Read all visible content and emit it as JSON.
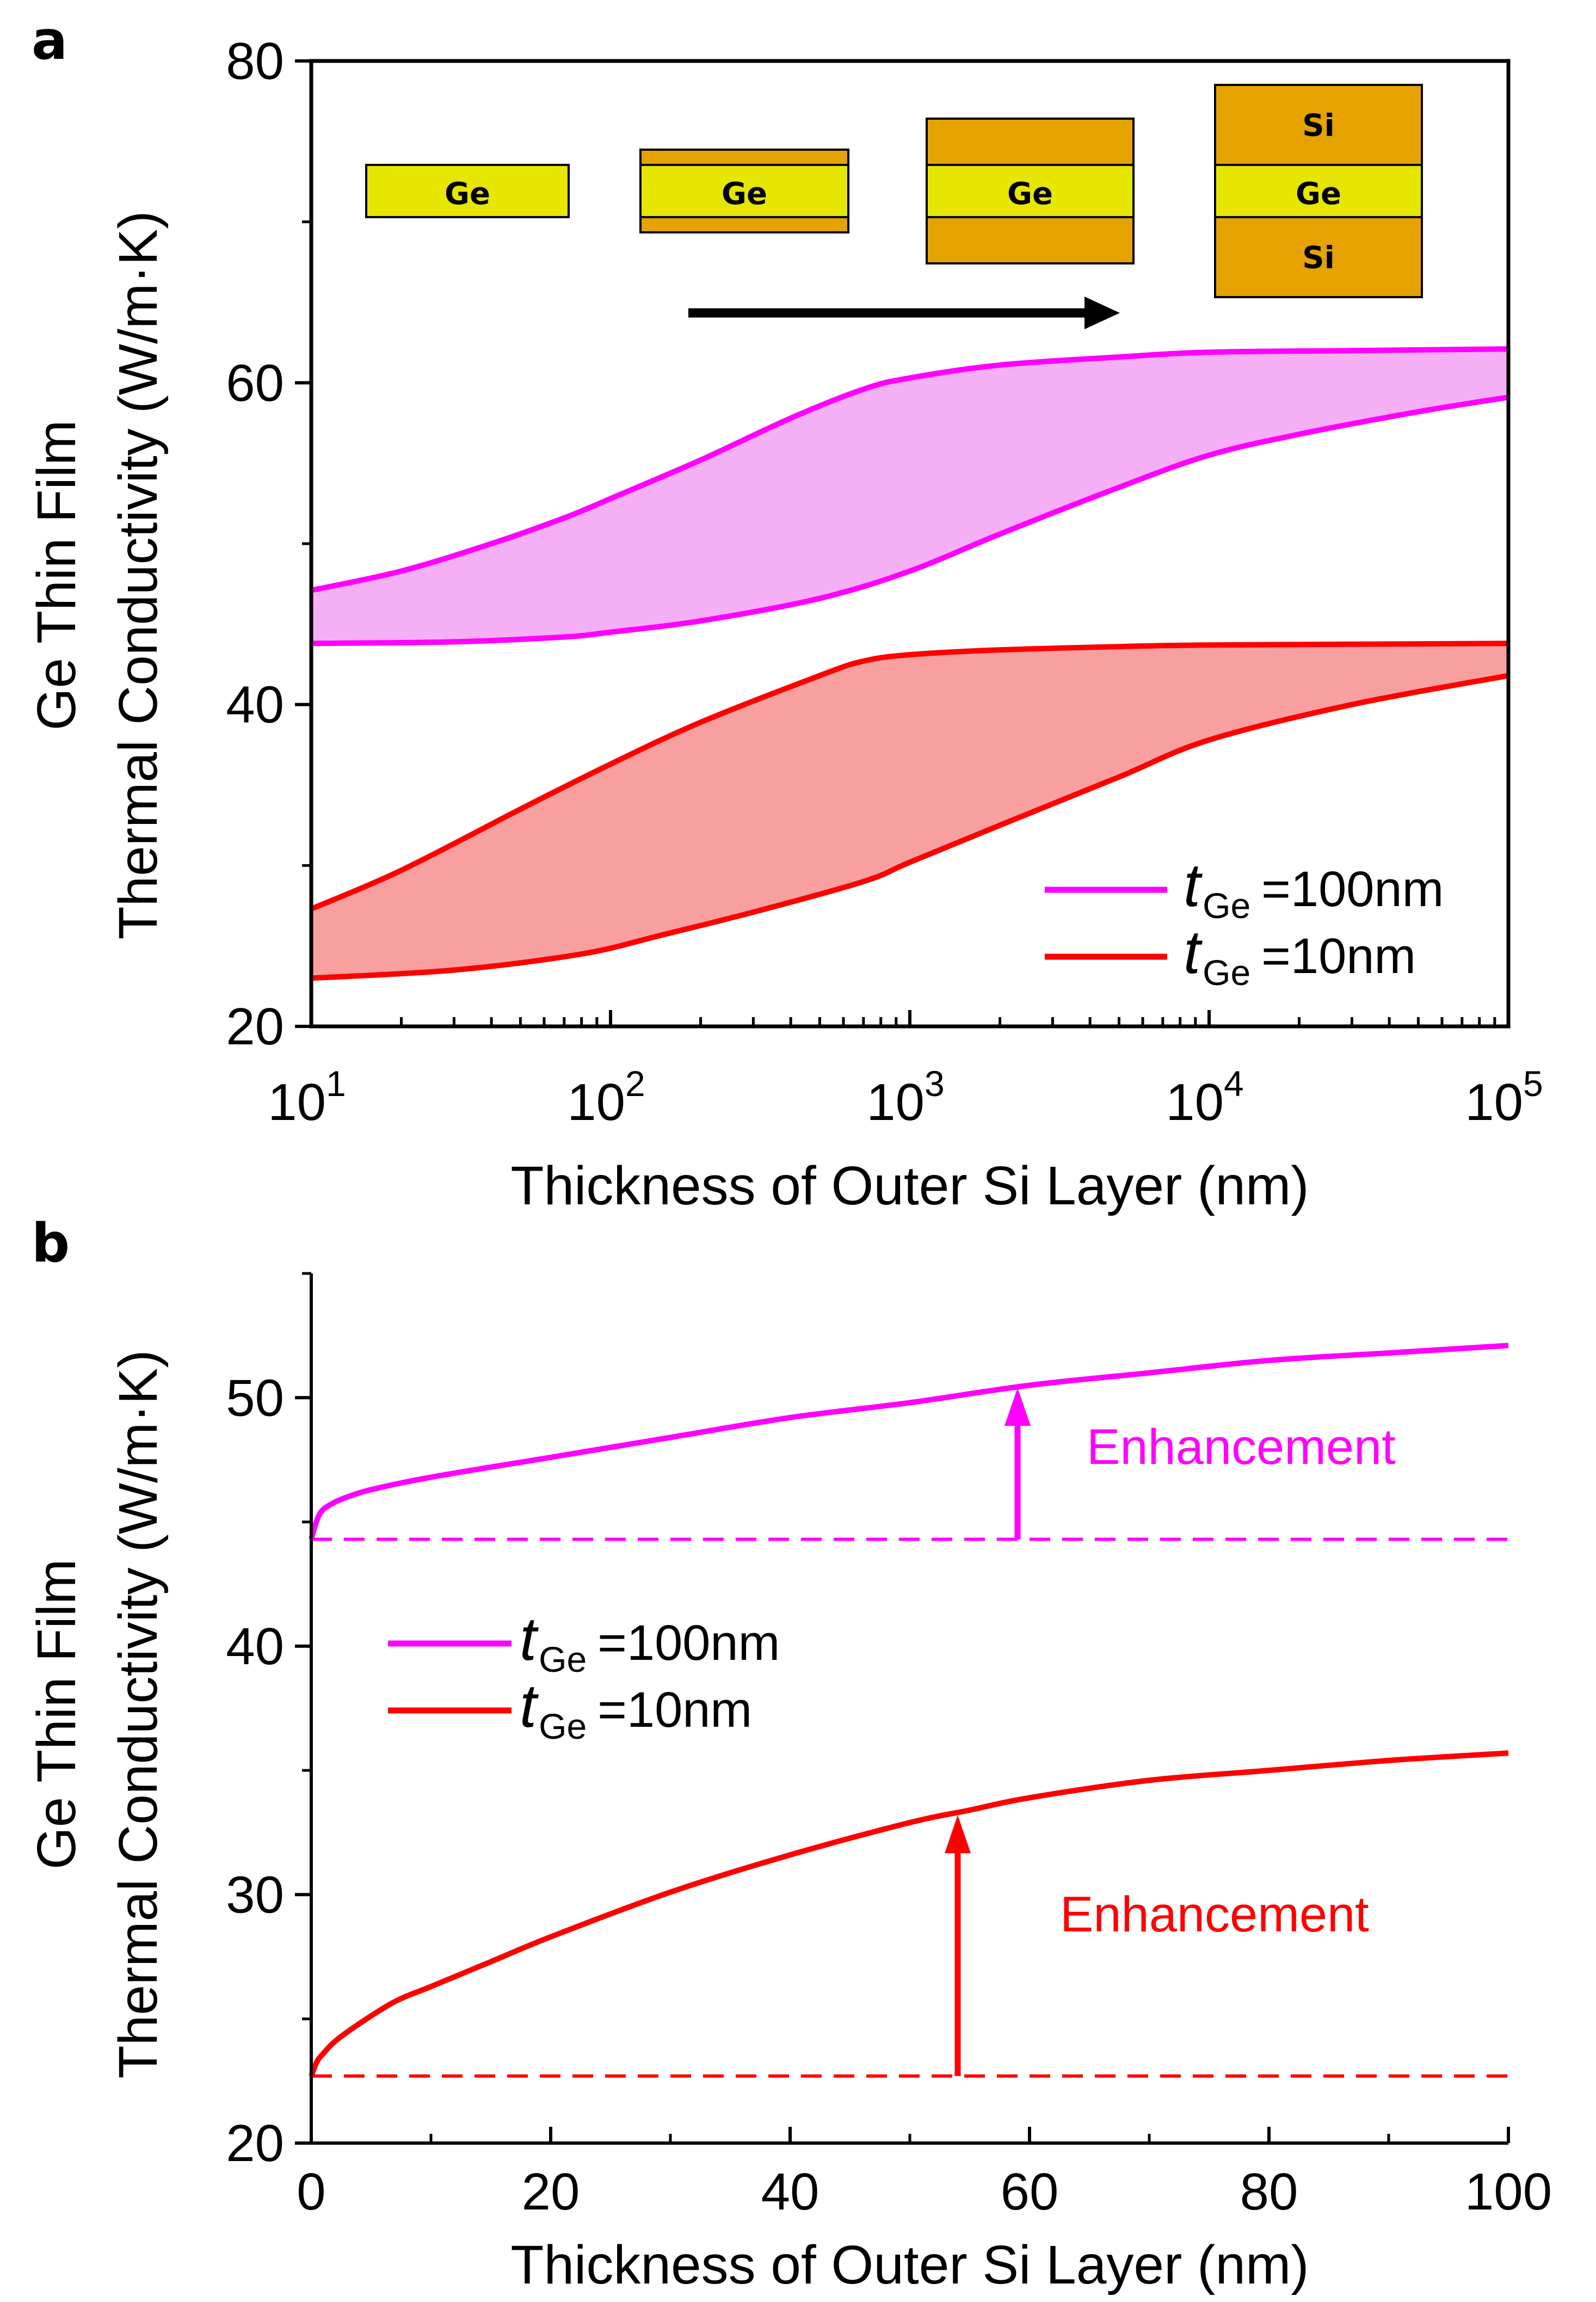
{
  "chart_data": [
    {
      "panel": "a",
      "type": "area",
      "xlabel": "Thickness of Outer Si Layer (nm)",
      "ylabel": [
        "Ge Thin Film",
        "Thermal Conductivity (W/m·K)"
      ],
      "xscale": "log",
      "xlim": [
        10,
        100000
      ],
      "ylim": [
        20,
        80
      ],
      "x_ticks": [
        {
          "base": "10",
          "exp": "1"
        },
        {
          "base": "10",
          "exp": "2"
        },
        {
          "base": "10",
          "exp": "3"
        },
        {
          "base": "10",
          "exp": "4"
        },
        {
          "base": "10",
          "exp": "5"
        }
      ],
      "y_ticks": [
        20,
        40,
        60,
        80
      ],
      "legend": {
        "placement": "lower-right",
        "entries": [
          {
            "symbol": "t",
            "sub": "Ge",
            "rest": "=100nm",
            "color": "#ff00ff"
          },
          {
            "symbol": "t",
            "sub": "Ge",
            "rest": "=10nm",
            "color": "#ff0000"
          }
        ]
      },
      "inset": {
        "stacks": [
          {
            "labels": [
              "",
              "Ge",
              ""
            ]
          },
          {
            "labels": [
              "",
              "Ge",
              ""
            ]
          },
          {
            "labels": [
              "",
              "Ge",
              ""
            ]
          },
          {
            "labels": [
              "Si",
              "Ge",
              "Si"
            ]
          }
        ],
        "colors": {
          "ge": "#e6e600",
          "si": "#e6a200",
          "arrow": "#000000"
        }
      },
      "series": [
        {
          "name": "tGe=100nm",
          "color": "#ff00ff",
          "fill": "#f5aff5",
          "upper": [
            [
              10,
              47.1
            ],
            [
              20,
              48.3
            ],
            [
              40,
              50.0
            ],
            [
              70,
              51.6
            ],
            [
              100,
              52.8
            ],
            [
              200,
              55.2
            ],
            [
              400,
              57.8
            ],
            [
              700,
              59.6
            ],
            [
              1000,
              60.3
            ],
            [
              2000,
              61.1
            ],
            [
              5000,
              61.6
            ],
            [
              10000,
              61.9
            ],
            [
              30000,
              62.0
            ],
            [
              100000,
              62.1
            ]
          ],
          "lower": [
            [
              10,
              43.8
            ],
            [
              30,
              43.9
            ],
            [
              70,
              44.2
            ],
            [
              100,
              44.5
            ],
            [
              200,
              45.2
            ],
            [
              500,
              46.6
            ],
            [
              1000,
              48.3
            ],
            [
              2000,
              50.6
            ],
            [
              5000,
              53.5
            ],
            [
              10000,
              55.5
            ],
            [
              20000,
              56.8
            ],
            [
              50000,
              58.2
            ],
            [
              100000,
              59.1
            ]
          ]
        },
        {
          "name": "tGe=10nm",
          "color": "#ff0000",
          "fill": "#f8a0a0",
          "upper": [
            [
              10,
              27.3
            ],
            [
              20,
              29.7
            ],
            [
              50,
              33.5
            ],
            [
              100,
              36.3
            ],
            [
              200,
              38.9
            ],
            [
              500,
              41.8
            ],
            [
              700,
              42.7
            ],
            [
              1000,
              43.1
            ],
            [
              2000,
              43.4
            ],
            [
              5000,
              43.6
            ],
            [
              10000,
              43.7
            ],
            [
              100000,
              43.8
            ]
          ],
          "lower": [
            [
              10,
              23.0
            ],
            [
              30,
              23.5
            ],
            [
              80,
              24.5
            ],
            [
              150,
              25.7
            ],
            [
              300,
              27.1
            ],
            [
              700,
              29.0
            ],
            [
              1000,
              30.2
            ],
            [
              2000,
              32.5
            ],
            [
              5000,
              35.5
            ],
            [
              10000,
              37.8
            ],
            [
              30000,
              40.0
            ],
            [
              100000,
              41.8
            ]
          ]
        }
      ]
    },
    {
      "panel": "b",
      "type": "line",
      "xlabel": "Thickness of Outer Si Layer (nm)",
      "ylabel": [
        "Ge Thin Film",
        "Thermal Conductivity (W/m·K)"
      ],
      "xlim": [
        0,
        100
      ],
      "ylim": [
        20,
        55
      ],
      "x_ticks": [
        0,
        20,
        40,
        60,
        80,
        100
      ],
      "y_ticks": [
        20,
        30,
        40,
        50
      ],
      "legend": {
        "placement": "upper-left",
        "entries": [
          {
            "symbol": "t",
            "sub": "Ge",
            "rest": "=100nm",
            "color": "#ff00ff"
          },
          {
            "symbol": "t",
            "sub": "Ge",
            "rest": "=10nm",
            "color": "#ff0000"
          }
        ]
      },
      "series": [
        {
          "name": "tGe=100nm",
          "color": "#ff00ff",
          "points": [
            [
              0,
              44.3
            ],
            [
              0.5,
              45.1
            ],
            [
              1,
              45.5
            ],
            [
              2,
              45.8
            ],
            [
              3,
              46.0
            ],
            [
              5,
              46.3
            ],
            [
              10,
              46.8
            ],
            [
              20,
              47.6
            ],
            [
              30,
              48.4
            ],
            [
              40,
              49.2
            ],
            [
              50,
              49.8
            ],
            [
              60,
              50.5
            ],
            [
              70,
              51.0
            ],
            [
              80,
              51.5
            ],
            [
              90,
              51.8
            ],
            [
              100,
              52.1
            ]
          ],
          "baseline": 44.3,
          "annotation": {
            "text": "Enhancement",
            "arrow_x": 59,
            "from": 44.3,
            "to": 50.4
          }
        },
        {
          "name": "tGe=10nm",
          "color": "#ff0000",
          "points": [
            [
              0,
              22.7
            ],
            [
              0.5,
              23.3
            ],
            [
              1,
              23.6
            ],
            [
              2,
              24.1
            ],
            [
              4,
              24.8
            ],
            [
              7,
              25.7
            ],
            [
              10,
              26.3
            ],
            [
              15,
              27.3
            ],
            [
              20,
              28.3
            ],
            [
              30,
              30.1
            ],
            [
              40,
              31.6
            ],
            [
              50,
              32.9
            ],
            [
              55,
              33.4
            ],
            [
              60,
              33.9
            ],
            [
              70,
              34.6
            ],
            [
              80,
              35.0
            ],
            [
              90,
              35.4
            ],
            [
              100,
              35.7
            ]
          ],
          "baseline": 22.7,
          "annotation": {
            "text": "Enhancement",
            "arrow_x": 54,
            "from": 22.7,
            "to": 33.2
          }
        }
      ]
    }
  ]
}
